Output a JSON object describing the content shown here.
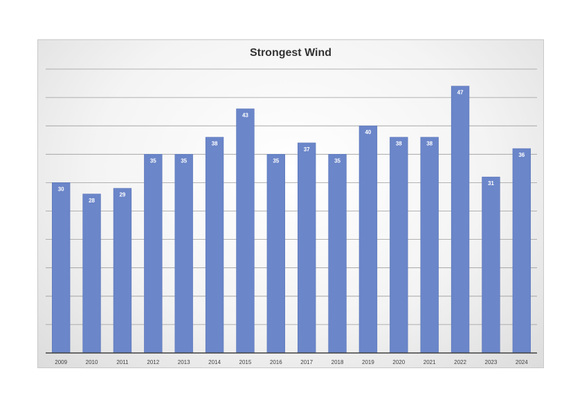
{
  "chart_data": {
    "type": "bar",
    "title": "Strongest Wind",
    "xlabel": "",
    "ylabel": "",
    "categories": [
      "2009",
      "2010",
      "2011",
      "2012",
      "2013",
      "2014",
      "2015",
      "2016",
      "2017",
      "2018",
      "2019",
      "2020",
      "2021",
      "2022",
      "2023",
      "2024"
    ],
    "values": [
      30,
      28,
      29,
      35,
      35,
      38,
      43,
      35,
      37,
      35,
      40,
      38,
      38,
      47,
      31,
      36
    ],
    "ylim": [
      0,
      50
    ],
    "y_axis_labels_shown": false,
    "data_labels": true,
    "grid": true,
    "legend": "none",
    "colors": {
      "bar": "#6b86c9",
      "bar_edge": "#5a75b8",
      "gridline": "#9a9a9a",
      "axis": "#404040"
    }
  }
}
